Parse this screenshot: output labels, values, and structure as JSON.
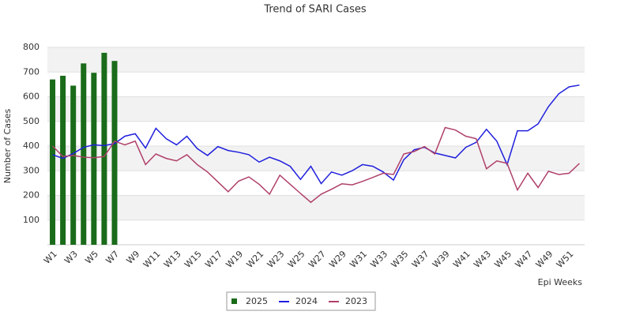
{
  "chart_data": {
    "type": "bar",
    "title": "Trend of SARI Cases",
    "y_label": "Number of Cases",
    "x_label": "Epi Weeks",
    "categories": [
      "W1",
      null,
      "W3",
      null,
      "W5",
      null,
      "W7",
      null,
      "W9",
      null,
      "W11",
      null,
      "W13",
      null,
      "W15",
      null,
      "W17",
      null,
      "W19",
      null,
      "W21",
      null,
      "W23",
      null,
      "W25",
      null,
      "W27",
      null,
      "W29",
      null,
      "W31",
      null,
      "W33",
      null,
      "W35",
      null,
      "W37",
      null,
      "W39",
      null,
      "W41",
      null,
      "W43",
      null,
      "W45",
      null,
      "W47",
      null,
      "W49",
      null,
      "W51",
      null
    ],
    "ylim": [
      0,
      800
    ],
    "yticks": [
      100,
      200,
      300,
      400,
      500,
      600,
      700,
      800
    ],
    "grid": true,
    "legend": "bottom",
    "series": [
      {
        "name": "2025",
        "type": "bar",
        "color": "#1a6b1a",
        "values": [
          670,
          685,
          645,
          735,
          697,
          778,
          745,
          null,
          null,
          null,
          null,
          null,
          null,
          null,
          null,
          null,
          null,
          null,
          null,
          null,
          null,
          null,
          null,
          null,
          null,
          null,
          null,
          null,
          null,
          null,
          null,
          null,
          null,
          null,
          null,
          null,
          null,
          null,
          null,
          null,
          null,
          null,
          null,
          null,
          null,
          null,
          null,
          null,
          null,
          null,
          null,
          null
        ]
      },
      {
        "name": "2024",
        "type": "line",
        "color": "#1f1fdd",
        "values": [
          365,
          350,
          370,
          395,
          405,
          402,
          410,
          440,
          450,
          392,
          472,
          430,
          405,
          440,
          390,
          362,
          398,
          382,
          375,
          365,
          335,
          355,
          340,
          318,
          265,
          318,
          248,
          295,
          282,
          300,
          325,
          318,
          295,
          262,
          345,
          385,
          395,
          372,
          362,
          352,
          395,
          415,
          468,
          420,
          325,
          462,
          462,
          490,
          560,
          612,
          640,
          647
        ]
      },
      {
        "name": "2023",
        "type": "line",
        "color": "#b0406a",
        "values": [
          400,
          358,
          362,
          355,
          353,
          358,
          420,
          405,
          420,
          325,
          368,
          350,
          340,
          365,
          325,
          295,
          255,
          215,
          258,
          275,
          245,
          205,
          282,
          245,
          208,
          172,
          205,
          225,
          247,
          243,
          257,
          273,
          290,
          285,
          368,
          378,
          398,
          368,
          475,
          465,
          440,
          430,
          308,
          340,
          330,
          222,
          290,
          232,
          298,
          285,
          290,
          330
        ]
      }
    ]
  }
}
